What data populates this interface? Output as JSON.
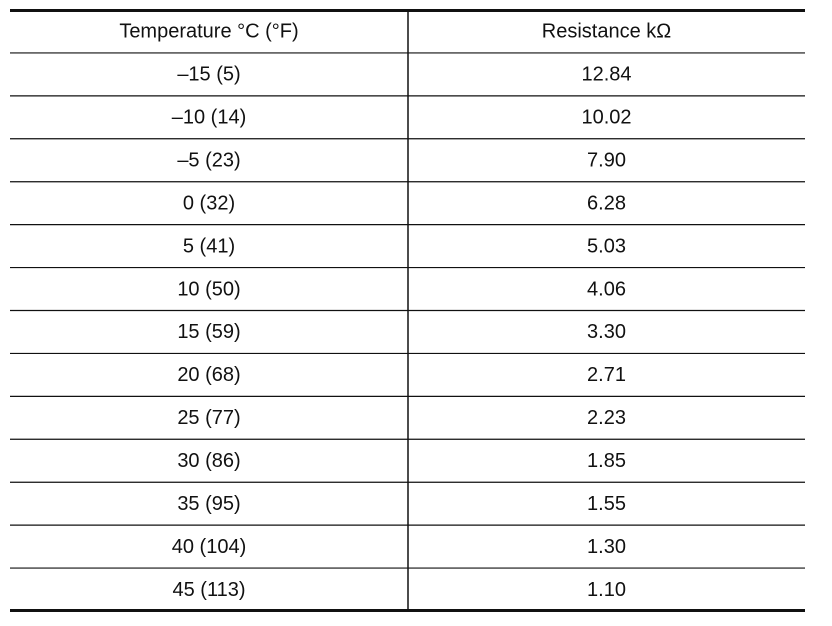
{
  "table": {
    "header": [
      "Temperature °C (°F)",
      "Resistance kΩ"
    ],
    "rows": [
      [
        "–15 (5)",
        "12.84"
      ],
      [
        "–10 (14)",
        "10.02"
      ],
      [
        "–5 (23)",
        "7.90"
      ],
      [
        "0 (32)",
        "6.28"
      ],
      [
        "5 (41)",
        "5.03"
      ],
      [
        "10 (50)",
        "4.06"
      ],
      [
        "15 (59)",
        "3.30"
      ],
      [
        "20 (68)",
        "2.71"
      ],
      [
        "25 (77)",
        "2.23"
      ],
      [
        "30 (86)",
        "1.85"
      ],
      [
        "35 (95)",
        "1.55"
      ],
      [
        "40 (104)",
        "1.30"
      ],
      [
        "45 (113)",
        "1.10"
      ]
    ]
  }
}
